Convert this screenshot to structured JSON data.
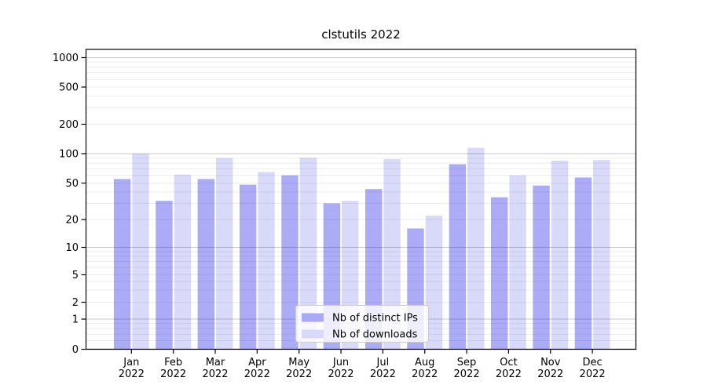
{
  "figure": {
    "title": "clstutils 2022"
  },
  "chart_data": {
    "type": "bar",
    "title": "clstutils 2022",
    "yscale": "symlog",
    "grid": true,
    "ylim": [
      0,
      1200
    ],
    "yticks": [
      0,
      1,
      2,
      5,
      10,
      20,
      50,
      100,
      200,
      500,
      1000
    ],
    "categories": [
      "Jan 2022",
      "Feb 2022",
      "Mar 2022",
      "Apr 2022",
      "May 2022",
      "Jun 2022",
      "Jul 2022",
      "Aug 2022",
      "Sep 2022",
      "Oct 2022",
      "Nov 2022",
      "Dec 2022"
    ],
    "x_tick_month": [
      "Jan",
      "Feb",
      "Mar",
      "Apr",
      "May",
      "Jun",
      "Jul",
      "Aug",
      "Sep",
      "Oct",
      "Nov",
      "Dec"
    ],
    "x_tick_year": "2022",
    "series": [
      {
        "name": "Nb of distinct IPs",
        "fill": "rgba(10,10,230,0.34)",
        "legend_color": "#a9a9f8",
        "values": [
          55,
          32,
          55,
          48,
          60,
          30,
          43,
          16,
          78,
          35,
          47,
          57
        ]
      },
      {
        "name": "Nb of downloads",
        "fill": "rgba(0,0,220,0.15)",
        "legend_color": "#d9d9fa",
        "values": [
          100,
          61,
          90,
          65,
          91,
          32,
          88,
          22,
          115,
          60,
          85,
          86
        ]
      }
    ],
    "legend": {
      "position": "lower center"
    }
  },
  "colors": {
    "major_grid": "#c9c9c9",
    "minor_grid": "#ededed",
    "axis": "#000000",
    "legend_border": "#cccccc",
    "legend_bg": "rgba(255,255,255,0.8)"
  }
}
